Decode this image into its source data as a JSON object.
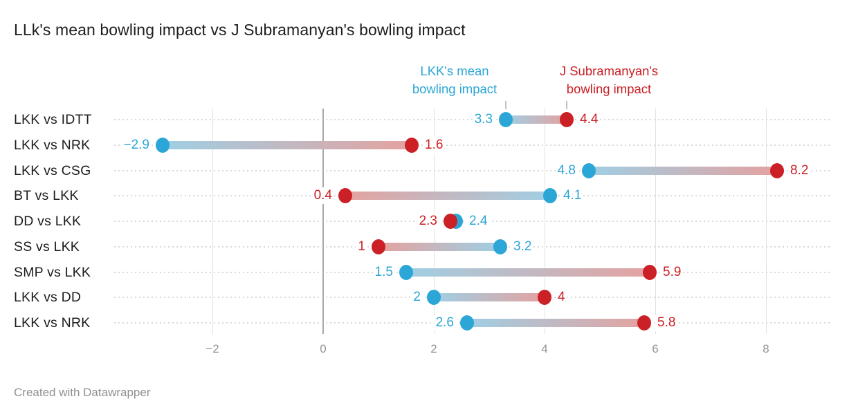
{
  "title": "LLk's mean bowling impact vs J Subramanyan's bowling impact",
  "footer": "Created with Datawrapper",
  "legend": {
    "blue": {
      "line1": "LKK's mean",
      "line2": "bowling impact"
    },
    "red": {
      "line1": "J Subramanyan's",
      "line2": "bowling impact"
    }
  },
  "colors": {
    "blue": "#2CA6D6",
    "red": "#CB2026",
    "bar_blue_end": "#9FCFE4",
    "bar_red_end": "#E4A2A0",
    "gridline": "#E2E2E2",
    "zero_gridline": "#A8A8A8",
    "row_guide": "#D8D8D8",
    "axis_text": "#949494",
    "label_text": "#1D1D1D",
    "footer_text": "#8F8F8F"
  },
  "chart_data": {
    "type": "dumbbell",
    "title": "LLk's mean bowling impact vs J Subramanyan's bowling impact",
    "categories": [
      "LKK vs IDTT",
      "LKK vs NRK",
      "LKK vs CSG",
      "BT vs LKK",
      "DD vs LKK",
      "SS vs LKK",
      "SMP vs LKK",
      "LKK vs DD",
      "LKK vs NRK"
    ],
    "series": [
      {
        "name": "LKK's mean bowling impact",
        "color": "#2CA6D6",
        "values": [
          3.3,
          -2.9,
          4.8,
          4.1,
          2.4,
          3.2,
          1.5,
          2,
          2.6
        ],
        "labels": [
          "3.3",
          "−2.9",
          "4.8",
          "4.1",
          "2.4",
          "3.2",
          "1.5",
          "2",
          "2.6"
        ]
      },
      {
        "name": "J Subramanyan's bowling impact",
        "color": "#CB2026",
        "values": [
          4.4,
          1.6,
          8.2,
          0.4,
          2.3,
          1,
          5.9,
          4,
          5.8
        ],
        "labels": [
          "4.4",
          "1.6",
          "8.2",
          "0.4",
          "2.3",
          "1",
          "5.9",
          "4",
          "5.8"
        ]
      }
    ],
    "x_ticks": [
      -2,
      0,
      2,
      4,
      6,
      8
    ],
    "x_tick_labels": [
      "−2",
      "0",
      "2",
      "4",
      "6",
      "8"
    ],
    "xlim": [
      -3.8,
      9.2
    ],
    "grid": true,
    "legend_position": "top"
  }
}
